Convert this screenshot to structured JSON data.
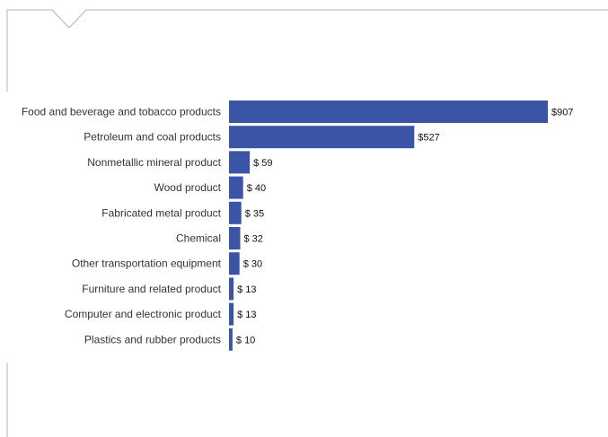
{
  "colors": {
    "bar": "#3a55a5",
    "frame_line": "#b3b3b3",
    "label_text": "#333333"
  },
  "chart_data": {
    "type": "bar",
    "orientation": "horizontal",
    "title": "",
    "xlabel": "",
    "ylabel": "",
    "xlim": [
      0,
      935
    ],
    "grid": false,
    "legend": "none",
    "categories": [
      "Food and beverage and tobacco products",
      "Petroleum and coal products",
      "Nonmetallic mineral product",
      "Wood product",
      "Fabricated metal product",
      "Chemical",
      "Other transportation equipment",
      "Furniture and related product",
      "Computer and electronic product",
      "Plastics and rubber products"
    ],
    "values": [
      907,
      527,
      59,
      40,
      35,
      32,
      30,
      13,
      13,
      10
    ],
    "value_labels": [
      "$907",
      "$527",
      "$ 59",
      "$ 40",
      "$ 35",
      "$ 32",
      "$ 30",
      "$ 13",
      "$ 13",
      "$ 10"
    ]
  }
}
